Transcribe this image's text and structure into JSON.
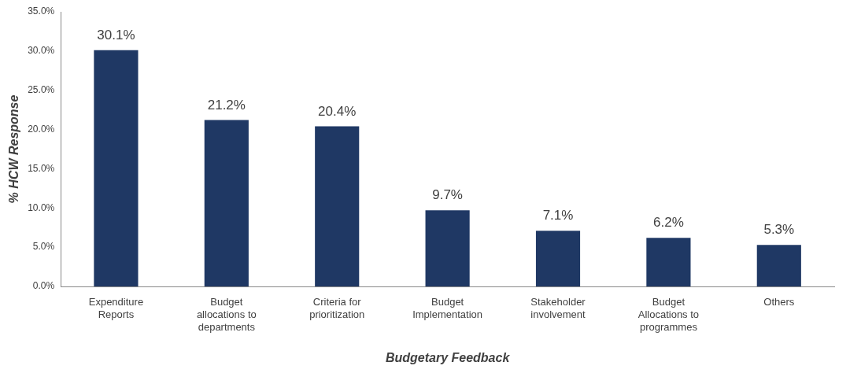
{
  "chart_data": {
    "type": "bar",
    "xlabel": "Budgetary Feedback",
    "ylabel": "% HCW Response",
    "categories": [
      "Expenditure Reports",
      "Budget allocations to departments",
      "Criteria for prioritization",
      "Budget Implementation",
      "Stakeholder involvement",
      "Budget Allocations to programmes",
      "Others"
    ],
    "values": [
      30.1,
      21.2,
      20.4,
      9.7,
      7.1,
      6.2,
      5.3
    ],
    "value_labels": [
      "30.1%",
      "21.2%",
      "20.4%",
      "9.7%",
      "7.1%",
      "6.2%",
      "5.3%"
    ],
    "color": "#1f3864",
    "ylim": [
      0,
      35
    ],
    "yticks": [
      {
        "value": 0,
        "label": "0.0%"
      },
      {
        "value": 5,
        "label": "5.0%"
      },
      {
        "value": 10,
        "label": "10.0%"
      },
      {
        "value": 15,
        "label": "15.0%"
      },
      {
        "value": 20,
        "label": "20.0%"
      },
      {
        "value": 25,
        "label": "25.0%"
      },
      {
        "value": 30,
        "label": "30.0%"
      },
      {
        "value": 35,
        "label": "35.0%"
      }
    ],
    "grid": false,
    "legend": false
  }
}
